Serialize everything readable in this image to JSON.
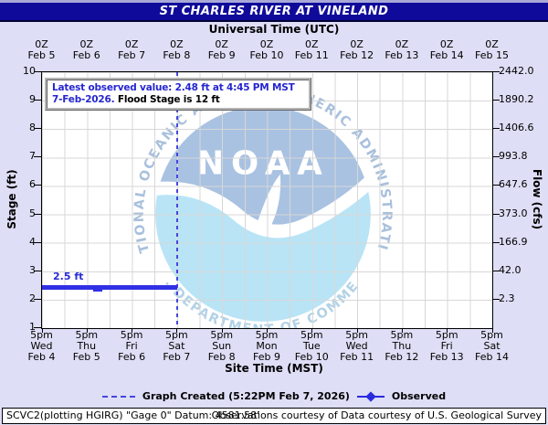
{
  "title": "ST CHARLES RIVER AT VINELAND",
  "top_axis": {
    "title": "Universal Time (UTC)",
    "hour_label": "0Z",
    "dates": [
      "Feb 5",
      "Feb 6",
      "Feb 7",
      "Feb 8",
      "Feb 9",
      "Feb 10",
      "Feb 11",
      "Feb 12",
      "Feb 13",
      "Feb 14",
      "Feb 15"
    ]
  },
  "bottom_axis": {
    "title": "Site Time (MST)",
    "time_label": "5pm",
    "days": [
      {
        "dow": "Wed",
        "date": "Feb 4"
      },
      {
        "dow": "Thu",
        "date": "Feb 5"
      },
      {
        "dow": "Fri",
        "date": "Feb 6"
      },
      {
        "dow": "Sat",
        "date": "Feb 7"
      },
      {
        "dow": "Sun",
        "date": "Feb 8"
      },
      {
        "dow": "Mon",
        "date": "Feb 9"
      },
      {
        "dow": "Tue",
        "date": "Feb 10"
      },
      {
        "dow": "Wed",
        "date": "Feb 11"
      },
      {
        "dow": "Thu",
        "date": "Feb 12"
      },
      {
        "dow": "Fri",
        "date": "Feb 13"
      },
      {
        "dow": "Sat",
        "date": "Feb 14"
      }
    ]
  },
  "left_axis": {
    "title": "Stage (ft)",
    "ticks": [
      "10",
      "9",
      "8",
      "7",
      "6",
      "5",
      "4",
      "3",
      "2",
      "1"
    ]
  },
  "right_axis": {
    "title": "Flow (cfs)",
    "ticks": [
      "2442.0",
      "1890.2",
      "1406.6",
      "993.8",
      "647.6",
      "373.0",
      "166.9",
      "42.0",
      "2.3"
    ]
  },
  "annotation": {
    "line1": "Latest observed value: 2.48 ft at 4:45 PM MST",
    "line2_blue": "7-Feb-2026.",
    "line2_black": " Flood Stage is 12 ft"
  },
  "observed_point_label": "2.5 ft",
  "legend": {
    "created": "Graph Created (5:22PM Feb 7, 2026)",
    "observed": "Observed"
  },
  "footer": {
    "left": "SCVC2(plotting HGIRG) \"Gage 0\" Datum: 4581.58'",
    "right": "Observations courtesy of Data courtesy of U.S. Geological Survey"
  },
  "logo": {
    "acronym": "NOAA",
    "ring_top": "NATIONAL OCEANIC AND ATMOSPHERIC ADMINISTRATION",
    "ring_bottom": "U.S. DEPARTMENT OF COMMERCE"
  },
  "colors": {
    "page_bg": "#dedef6",
    "title_bar": "#0f0a9a",
    "plot_bg": "#ffffff",
    "gridline": "#d7d7d7",
    "observed_line": "#3030e6",
    "blue_text": "#2626d0",
    "now_line": "#4646dd",
    "logo_sky": "#a9c2e2",
    "logo_sea": "#b9e4f6",
    "logo_ring_text": "#a9c0dc"
  },
  "chart_data": {
    "type": "line",
    "title": "ST CHARLES RIVER AT VINELAND",
    "xlabel_top": "Universal Time (UTC)",
    "xlabel_bottom": "Site Time (MST)",
    "ylabel_left": "Stage (ft)",
    "ylabel_right": "Flow (cfs)",
    "x_range_utc": [
      "Feb 5 0Z",
      "Feb 15 0Z"
    ],
    "x_range_mst": [
      "Feb 4 5pm",
      "Feb 14 5pm"
    ],
    "ylim_stage_ft": [
      1,
      10
    ],
    "stage_ticks_ft": [
      10,
      9,
      8,
      7,
      6,
      5,
      4,
      3,
      2,
      1
    ],
    "flow_ticks_cfs_top_to_bottom": [
      2442.0,
      1890.2,
      1406.6,
      993.8,
      647.6,
      373.0,
      166.9,
      42.0,
      2.3
    ],
    "grid": true,
    "legend_position": "bottom",
    "series": [
      {
        "name": "Observed",
        "unit": "ft",
        "points": [
          {
            "x": "Feb 4 5:00pm MST",
            "y": 2.48
          },
          {
            "x": "Feb 5 10:00pm MST",
            "y": 2.43
          },
          {
            "x": "Feb 6 12:00am MST",
            "y": 2.48
          },
          {
            "x": "Feb 7 4:45pm MST",
            "y": 2.48
          }
        ]
      }
    ],
    "current_time_marker": {
      "x": "Feb 8 0Z (Feb 7 5pm MST)",
      "style": "dashed-vertical"
    },
    "latest_observed": {
      "value_ft": 2.48,
      "flow_hint_cfs": null,
      "time": "4:45 PM MST 7-Feb-2026"
    },
    "flood_stage_ft": 12,
    "graph_created": "5:22PM Feb 7, 2026"
  }
}
